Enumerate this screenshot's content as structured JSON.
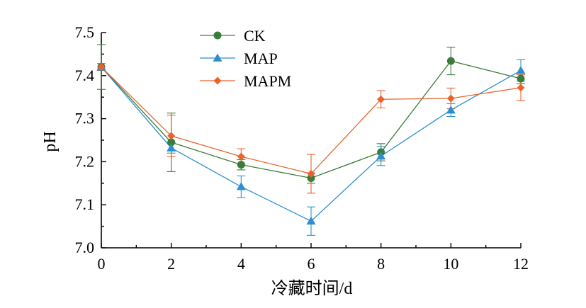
{
  "chart_data": {
    "type": "line",
    "title": "",
    "xlabel": "冷藏时间/d",
    "ylabel": "pH",
    "x": [
      0,
      2,
      4,
      6,
      8,
      10,
      12
    ],
    "xlim": [
      0,
      12
    ],
    "ylim": [
      7.0,
      7.5
    ],
    "x_ticks": [
      "0",
      "2",
      "4",
      "6",
      "8",
      "10",
      "12"
    ],
    "y_ticks": [
      "7.0",
      "7.1",
      "7.2",
      "7.3",
      "7.4",
      "7.5"
    ],
    "grid": false,
    "legend_position": "top-center",
    "series": [
      {
        "name": "CK",
        "color": "#3a7d3a",
        "marker": "circle",
        "values": [
          7.42,
          7.245,
          7.193,
          7.162,
          7.222,
          7.434,
          7.393
        ],
        "errors": [
          0.052,
          0.068,
          0.012,
          0.012,
          0.02,
          0.032,
          0.012
        ]
      },
      {
        "name": "MAP",
        "color": "#2d8fd0",
        "marker": "triangle",
        "values": [
          7.42,
          7.232,
          7.142,
          7.062,
          7.213,
          7.32,
          7.412
        ],
        "errors": [
          0.008,
          0.012,
          0.025,
          0.033,
          0.022,
          0.015,
          0.025
        ]
      },
      {
        "name": "MAPM",
        "color": "#e8642c",
        "marker": "diamond",
        "values": [
          7.42,
          7.26,
          7.212,
          7.172,
          7.345,
          7.347,
          7.372
        ],
        "errors": [
          0.008,
          0.048,
          0.018,
          0.045,
          0.02,
          0.024,
          0.03
        ]
      }
    ]
  }
}
